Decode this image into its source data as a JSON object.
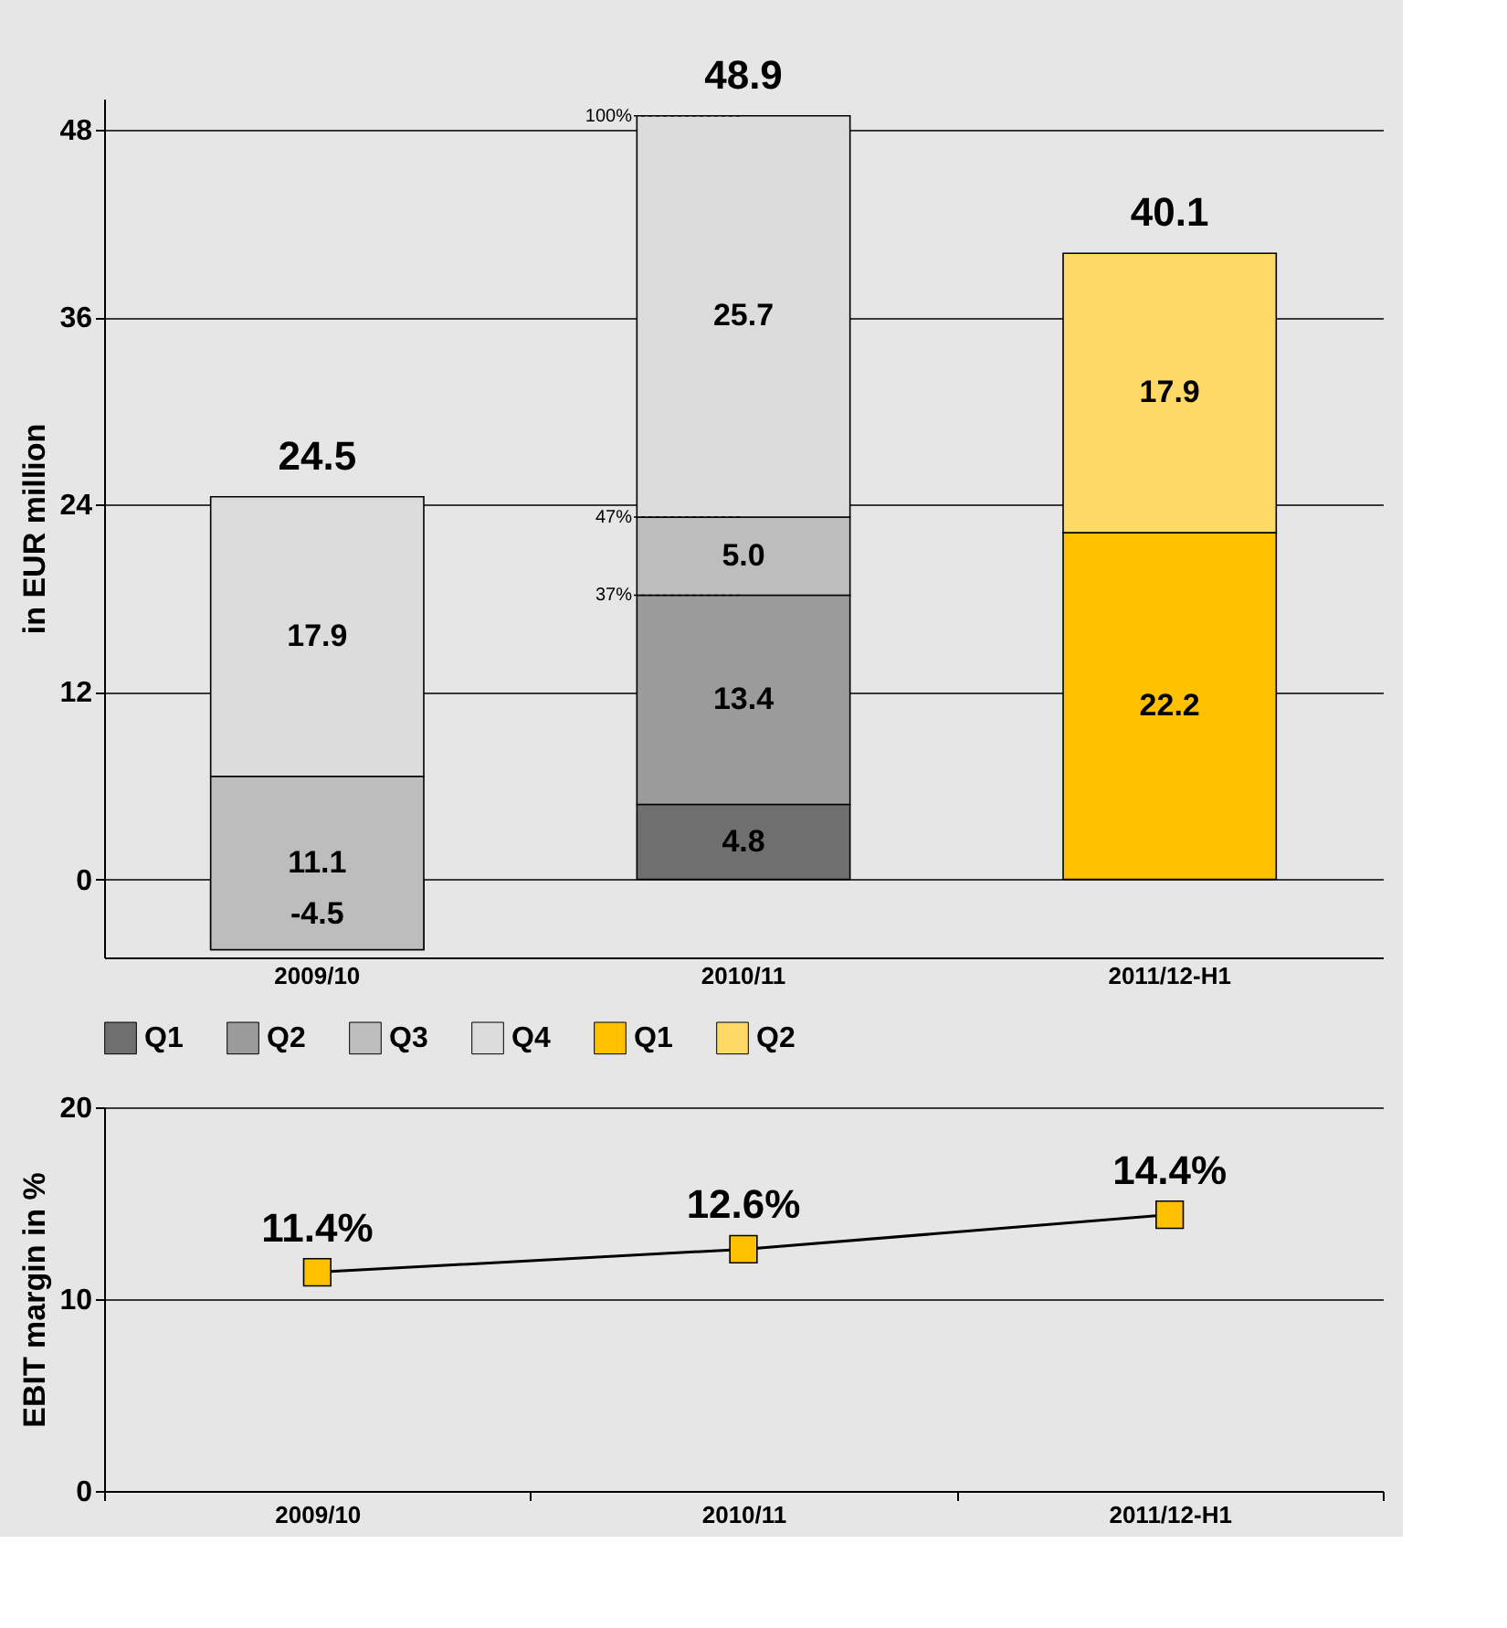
{
  "chart_data": [
    {
      "type": "bar",
      "stacked": true,
      "ylabel": "in EUR million",
      "categories": [
        "2009/10",
        "2010/11",
        "2011/12-H1"
      ],
      "series": [
        {
          "name": "Q1",
          "color": "#6f6f6f",
          "values": [
            null,
            4.8,
            null
          ]
        },
        {
          "name": "Q2",
          "color": "#9b9b9b",
          "values": [
            -4.5,
            13.4,
            null
          ]
        },
        {
          "name": "Q3",
          "color": "#bdbdbd",
          "values": [
            11.1,
            5.0,
            null
          ],
          "value_labels": [
            "11.1",
            "5.0",
            null
          ],
          "base": [
            -4.5,
            null,
            null
          ]
        },
        {
          "name": "Q4",
          "color": "#dcdcdc",
          "values": [
            17.9,
            25.7,
            null
          ],
          "base": [
            6.6,
            null,
            null
          ]
        },
        {
          "name": "Q1",
          "color": "#ffc000",
          "values": [
            null,
            null,
            22.2
          ]
        },
        {
          "name": "Q2",
          "color": "#ffd966",
          "values": [
            null,
            null,
            17.9
          ]
        }
      ],
      "data_labels": true,
      "totals": [
        "24.5",
        "48.9",
        "40.1"
      ],
      "annotations": [
        {
          "text": "100%",
          "x": "2010/11",
          "y": 48.9
        },
        {
          "text": "47%",
          "x": "2010/11",
          "y": 23.2
        },
        {
          "text": "37%",
          "x": "2010/11",
          "y": 18.2
        }
      ],
      "ylim": [
        -5,
        50
      ],
      "yticks": [
        0,
        12,
        24,
        36,
        48
      ],
      "grid": "y",
      "legend": "bottom"
    },
    {
      "type": "line",
      "ylabel": "EBIT margin in %",
      "categories": [
        "2009/10",
        "2010/11",
        "2011/12-H1"
      ],
      "series": [
        {
          "color": "#ffc000",
          "values": [
            11.4,
            12.6,
            14.4
          ],
          "value_labels": [
            "11.4%",
            "12.6%",
            "14.4%"
          ]
        }
      ],
      "marker": "square",
      "ylim": [
        0,
        20
      ],
      "yticks": [
        0,
        10,
        20
      ],
      "grid": "y"
    }
  ]
}
